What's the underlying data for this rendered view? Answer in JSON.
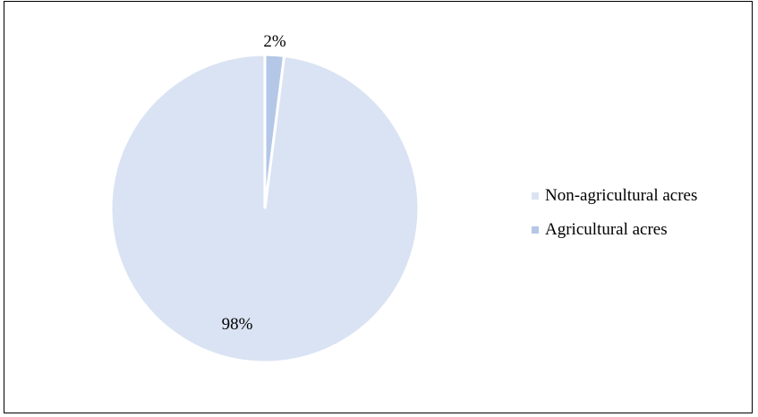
{
  "chart_data": {
    "type": "pie",
    "categories": [
      "Non-agricultural acres",
      "Agricultural acres"
    ],
    "values": [
      98,
      2
    ],
    "data_labels": [
      "98%",
      "2%"
    ],
    "colors": [
      "#dae3f3",
      "#b4c7e7"
    ],
    "legend": {
      "placement": "right",
      "entries": [
        "Non-agricultural acres",
        "Agricultural acres"
      ]
    }
  }
}
